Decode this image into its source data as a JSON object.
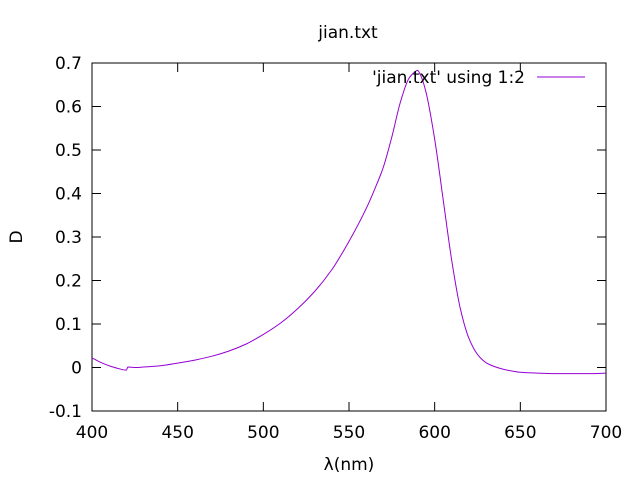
{
  "chart_data": {
    "type": "line",
    "title": "jian.txt",
    "xlabel": "λ(nm)",
    "ylabel": "D",
    "xlim": [
      400,
      700
    ],
    "ylim": [
      -0.1,
      0.7
    ],
    "xticks": [
      400,
      450,
      500,
      550,
      600,
      650,
      700
    ],
    "yticks": [
      -0.1,
      0,
      0.1,
      0.2,
      0.3,
      0.4,
      0.5,
      0.6,
      0.7
    ],
    "grid": false,
    "legend_position": "top-right",
    "series": [
      {
        "name": "'jian.txt' using 1:2",
        "color": "#9400d3",
        "x": [
          400,
          405,
          410,
          415,
          420,
          421,
          425,
          430,
          440,
          450,
          460,
          470,
          480,
          490,
          500,
          510,
          520,
          530,
          540,
          550,
          560,
          565,
          570,
          575,
          580,
          585,
          588,
          590,
          592,
          595,
          600,
          605,
          610,
          615,
          620,
          625,
          630,
          635,
          640,
          645,
          650,
          660,
          670,
          680,
          690,
          700
        ],
        "y": [
          0.022,
          0.012,
          0.004,
          -0.002,
          -0.006,
          0.001,
          0.0,
          0.001,
          0.004,
          0.01,
          0.017,
          0.026,
          0.038,
          0.054,
          0.076,
          0.102,
          0.135,
          0.175,
          0.225,
          0.29,
          0.365,
          0.41,
          0.46,
          0.53,
          0.61,
          0.665,
          0.678,
          0.683,
          0.67,
          0.632,
          0.525,
          0.385,
          0.245,
          0.135,
          0.067,
          0.03,
          0.011,
          0.002,
          -0.004,
          -0.008,
          -0.011,
          -0.013,
          -0.014,
          -0.014,
          -0.014,
          -0.013
        ]
      }
    ]
  }
}
